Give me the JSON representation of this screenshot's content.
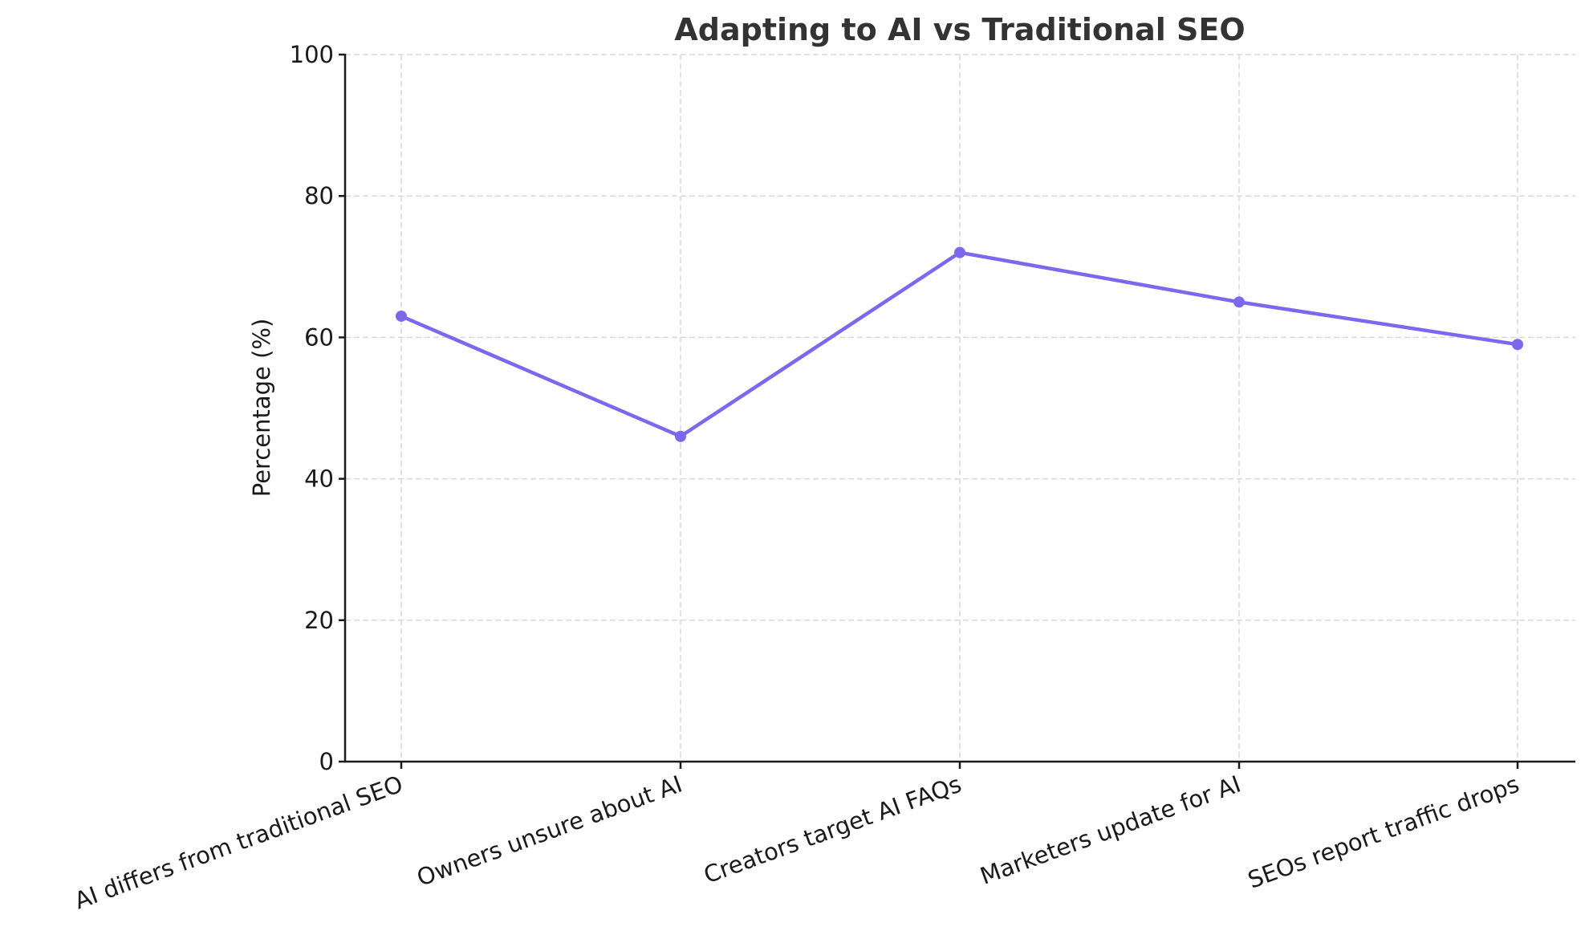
{
  "chart_data": {
    "type": "line",
    "title": "Adapting to AI vs Traditional SEO",
    "xlabel": "",
    "ylabel": "Percentage (%)",
    "categories": [
      "AI differs from traditional SEO",
      "Owners unsure about AI",
      "Creators target AI FAQs",
      "Marketers update for AI",
      "SEOs report traffic drops"
    ],
    "series": [
      {
        "name": "Percentage",
        "values": [
          63,
          46,
          72,
          65,
          59
        ],
        "color": "#7b68ee",
        "marker": "circle"
      }
    ],
    "ylim": [
      0,
      100
    ],
    "yticks": [
      0,
      20,
      40,
      60,
      80,
      100
    ],
    "grid": true,
    "grid_style": "dashed",
    "legend": null,
    "xtick_rotation": -20
  }
}
